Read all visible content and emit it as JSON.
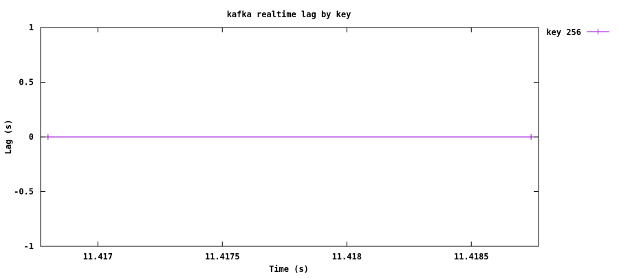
{
  "chart_data": {
    "type": "line",
    "title": "kafka realtime lag by key",
    "xlabel": "Time (s)",
    "ylabel": "Lag (s)",
    "xlim": [
      11.41677,
      11.41877
    ],
    "ylim": [
      -1,
      1
    ],
    "x_ticks": [
      11.417,
      11.4175,
      11.418,
      11.4185
    ],
    "x_tick_labels": [
      "11.417",
      "11.4175",
      "11.418",
      "11.4185"
    ],
    "y_ticks": [
      -1,
      -0.5,
      0,
      0.5,
      1
    ],
    "y_tick_labels": [
      "-1",
      "-0.5",
      "0",
      "0.5",
      "1"
    ],
    "grid": false,
    "legend_position": "top-right outside",
    "series": [
      {
        "name": "key 256",
        "color": "#9400d3",
        "marker": "plus",
        "x": [
          11.4168,
          11.41874
        ],
        "y": [
          0,
          0
        ]
      }
    ]
  }
}
